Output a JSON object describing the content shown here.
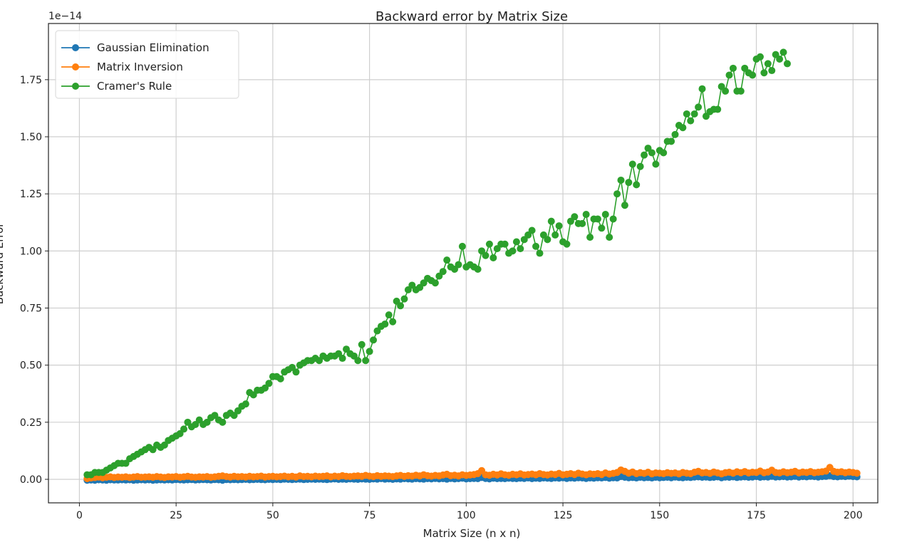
{
  "chart_data": {
    "type": "line",
    "title": "Backward error by Matrix Size",
    "xlabel": "Matrix Size (n x n)",
    "ylabel": "Backward Error",
    "y_offset_label": "1e−14",
    "xlim": [
      -8,
      206.4
    ],
    "ylim": [
      -0.103,
      1.996
    ],
    "y_scale_factor": "1e-14",
    "x_ticks": [
      0,
      25,
      50,
      75,
      100,
      125,
      150,
      175,
      200
    ],
    "x_tick_labels": [
      "0",
      "25",
      "50",
      "75",
      "100",
      "125",
      "150",
      "175",
      "200"
    ],
    "y_ticks": [
      0,
      0.25,
      0.5,
      0.75,
      1.0,
      1.25,
      1.5,
      1.75
    ],
    "y_tick_labels": [
      "0.00",
      "0.25",
      "0.50",
      "0.75",
      "1.00",
      "1.25",
      "1.50",
      "1.75"
    ],
    "grid": true,
    "legend_position": "top-left",
    "series": [
      {
        "name": "Gaussian Elimination",
        "color": "#1f77b4",
        "x_start": 2,
        "x_step": 1,
        "values": [
          -0.004,
          -0.003,
          -0.004,
          -0.002,
          -0.003,
          -0.004,
          -0.002,
          -0.003,
          -0.003,
          -0.002,
          -0.003,
          -0.002,
          -0.004,
          -0.003,
          -0.002,
          -0.003,
          -0.002,
          -0.004,
          -0.003,
          -0.002,
          -0.003,
          -0.002,
          -0.003,
          -0.001,
          -0.002,
          -0.003,
          -0.002,
          -0.001,
          -0.003,
          -0.002,
          -0.001,
          -0.002,
          -0.003,
          -0.001,
          -0.002,
          -0.004,
          -0.001,
          -0.002,
          -0.001,
          -0.002,
          -0.001,
          0.0,
          -0.002,
          -0.001,
          0.0,
          -0.001,
          -0.002,
          0.0,
          -0.001,
          0.0,
          -0.001,
          0.001,
          0.0,
          -0.001,
          0.0,
          0.001,
          -0.001,
          0.0,
          0.001,
          0.0,
          0.001,
          0.0,
          -0.001,
          0.001,
          0.002,
          0.0,
          0.001,
          0.0,
          0.002,
          0.001,
          0.0,
          0.002,
          0.001,
          0.0,
          0.002,
          0.001,
          0.003,
          0.001,
          0.002,
          0.0,
          0.002,
          0.001,
          0.003,
          0.002,
          0.001,
          0.003,
          0.002,
          0.001,
          0.003,
          0.002,
          0.004,
          0.002,
          0.003,
          0.001,
          0.004,
          0.002,
          0.003,
          0.005,
          0.002,
          0.003,
          0.004,
          0.003,
          0.008,
          0.004,
          0.002,
          0.005,
          0.003,
          0.004,
          0.003,
          0.005,
          0.004,
          0.003,
          0.005,
          0.004,
          0.006,
          0.003,
          0.005,
          0.004,
          0.006,
          0.005,
          0.004,
          0.006,
          0.005,
          0.007,
          0.004,
          0.006,
          0.005,
          0.007,
          0.006,
          0.004,
          0.006,
          0.005,
          0.007,
          0.006,
          0.008,
          0.005,
          0.007,
          0.006,
          0.012,
          0.009,
          0.007,
          0.008,
          0.006,
          0.009,
          0.007,
          0.008,
          0.006,
          0.009,
          0.007,
          0.008,
          0.009,
          0.007,
          0.01,
          0.008,
          0.007,
          0.009,
          0.008,
          0.01,
          0.011,
          0.009,
          0.01,
          0.008,
          0.009,
          0.011,
          0.007,
          0.01,
          0.009,
          0.011,
          0.008,
          0.01,
          0.011,
          0.009,
          0.01,
          0.012,
          0.009,
          0.011,
          0.01,
          0.013,
          0.01,
          0.011,
          0.012,
          0.01,
          0.011,
          0.013,
          0.01,
          0.012,
          0.011,
          0.013,
          0.012,
          0.01,
          0.012,
          0.013,
          0.016,
          0.012,
          0.011,
          0.013,
          0.012,
          0.014,
          0.012,
          0.011
        ]
      },
      {
        "name": "Matrix Inversion",
        "color": "#ff7f0e",
        "x_start": 2,
        "x_step": 1,
        "values": [
          0.003,
          0.006,
          0.008,
          0.01,
          0.007,
          0.009,
          0.011,
          0.008,
          0.01,
          0.009,
          0.011,
          0.008,
          0.01,
          0.012,
          0.009,
          0.01,
          0.011,
          0.009,
          0.012,
          0.01,
          0.008,
          0.011,
          0.01,
          0.012,
          0.009,
          0.011,
          0.013,
          0.01,
          0.009,
          0.011,
          0.01,
          0.012,
          0.009,
          0.011,
          0.013,
          0.015,
          0.012,
          0.01,
          0.013,
          0.011,
          0.012,
          0.01,
          0.013,
          0.011,
          0.012,
          0.014,
          0.01,
          0.012,
          0.013,
          0.011,
          0.012,
          0.014,
          0.011,
          0.013,
          0.01,
          0.015,
          0.012,
          0.013,
          0.011,
          0.014,
          0.012,
          0.013,
          0.015,
          0.011,
          0.014,
          0.012,
          0.016,
          0.013,
          0.012,
          0.014,
          0.015,
          0.013,
          0.017,
          0.014,
          0.012,
          0.016,
          0.013,
          0.015,
          0.014,
          0.012,
          0.015,
          0.017,
          0.013,
          0.016,
          0.014,
          0.018,
          0.015,
          0.02,
          0.016,
          0.014,
          0.017,
          0.015,
          0.019,
          0.022,
          0.016,
          0.018,
          0.015,
          0.02,
          0.017,
          0.019,
          0.021,
          0.025,
          0.038,
          0.02,
          0.018,
          0.022,
          0.019,
          0.024,
          0.02,
          0.018,
          0.022,
          0.02,
          0.024,
          0.019,
          0.021,
          0.023,
          0.02,
          0.025,
          0.021,
          0.019,
          0.023,
          0.021,
          0.026,
          0.02,
          0.022,
          0.025,
          0.021,
          0.027,
          0.023,
          0.02,
          0.024,
          0.022,
          0.025,
          0.021,
          0.028,
          0.023,
          0.026,
          0.03,
          0.041,
          0.035,
          0.027,
          0.032,
          0.025,
          0.029,
          0.026,
          0.031,
          0.024,
          0.028,
          0.027,
          0.025,
          0.029,
          0.026,
          0.028,
          0.024,
          0.03,
          0.027,
          0.025,
          0.031,
          0.035,
          0.028,
          0.03,
          0.026,
          0.032,
          0.028,
          0.024,
          0.029,
          0.031,
          0.027,
          0.033,
          0.029,
          0.034,
          0.028,
          0.031,
          0.03,
          0.036,
          0.029,
          0.032,
          0.04,
          0.03,
          0.028,
          0.033,
          0.029,
          0.031,
          0.035,
          0.028,
          0.032,
          0.03,
          0.034,
          0.029,
          0.031,
          0.033,
          0.036,
          0.052,
          0.035,
          0.031,
          0.033,
          0.029,
          0.032,
          0.03,
          0.027
        ]
      },
      {
        "name": "Cramer's Rule",
        "color": "#2ca02c",
        "x_start": 2,
        "x_step": 1,
        "values": [
          0.02,
          0.02,
          0.03,
          0.03,
          0.03,
          0.04,
          0.05,
          0.06,
          0.07,
          0.07,
          0.07,
          0.09,
          0.1,
          0.11,
          0.12,
          0.13,
          0.14,
          0.13,
          0.15,
          0.14,
          0.15,
          0.17,
          0.18,
          0.19,
          0.2,
          0.22,
          0.25,
          0.23,
          0.24,
          0.26,
          0.24,
          0.25,
          0.27,
          0.28,
          0.26,
          0.25,
          0.28,
          0.29,
          0.28,
          0.3,
          0.32,
          0.33,
          0.38,
          0.37,
          0.39,
          0.39,
          0.4,
          0.42,
          0.45,
          0.45,
          0.44,
          0.47,
          0.48,
          0.49,
          0.47,
          0.5,
          0.51,
          0.52,
          0.52,
          0.53,
          0.52,
          0.54,
          0.53,
          0.54,
          0.54,
          0.55,
          0.53,
          0.57,
          0.55,
          0.54,
          0.52,
          0.59,
          0.52,
          0.56,
          0.61,
          0.65,
          0.67,
          0.68,
          0.72,
          0.69,
          0.78,
          0.76,
          0.79,
          0.83,
          0.85,
          0.83,
          0.84,
          0.86,
          0.88,
          0.87,
          0.86,
          0.89,
          0.91,
          0.96,
          0.93,
          0.92,
          0.94,
          1.02,
          0.93,
          0.94,
          0.93,
          0.92,
          1.0,
          0.98,
          1.03,
          0.97,
          1.01,
          1.03,
          1.03,
          0.99,
          1.0,
          1.04,
          1.01,
          1.05,
          1.07,
          1.09,
          1.02,
          0.99,
          1.07,
          1.05,
          1.13,
          1.07,
          1.11,
          1.04,
          1.03,
          1.13,
          1.15,
          1.12,
          1.12,
          1.16,
          1.06,
          1.14,
          1.14,
          1.1,
          1.16,
          1.06,
          1.14,
          1.25,
          1.31,
          1.2,
          1.3,
          1.38,
          1.29,
          1.37,
          1.42,
          1.45,
          1.43,
          1.38,
          1.44,
          1.43,
          1.48,
          1.48,
          1.51,
          1.55,
          1.54,
          1.6,
          1.57,
          1.6,
          1.63,
          1.71,
          1.59,
          1.61,
          1.62,
          1.62,
          1.72,
          1.7,
          1.77,
          1.8,
          1.7,
          1.7,
          1.8,
          1.78,
          1.77,
          1.84,
          1.85,
          1.78,
          1.82,
          1.79,
          1.86,
          1.84,
          1.87,
          1.82
        ]
      }
    ]
  }
}
